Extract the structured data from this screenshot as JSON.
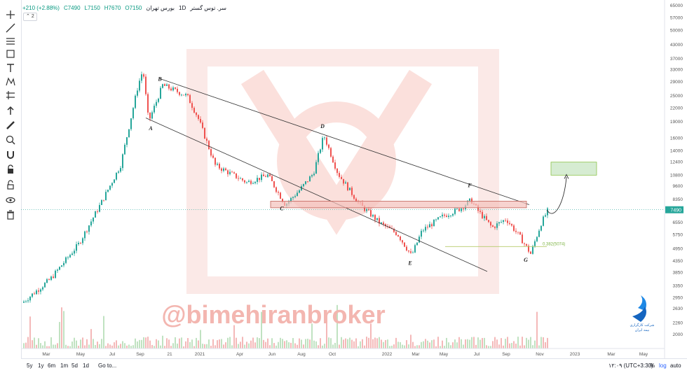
{
  "header": {
    "symbol": "سر. توس گستر",
    "interval": "1D",
    "exchange": "بورس تهران",
    "open": "O7150",
    "high": "H7670",
    "low": "L7150",
    "close": "C7490",
    "change": "+210 (+2.88%)",
    "collapse_label": "2"
  },
  "bottom_bar": {
    "ranges": [
      "5y",
      "1y",
      "6m",
      "1m",
      "5d",
      "1d"
    ],
    "goto": "Go to...",
    "time": "۱۲:۰۹ (UTC+3:30)",
    "percent": "%",
    "log": "log",
    "auto": "auto"
  },
  "watermark": "@bimehiranbroker",
  "logo_text": [
    "شرکت کارگزاری",
    "بیمه ایران"
  ],
  "colors": {
    "up": "#26a69a",
    "down": "#ef5350",
    "watermark": "#e57373",
    "fib": "#b5cc6a",
    "target_fill": "#d6ecd2",
    "price_badge": "#26a69a",
    "logo": "#1e88e5"
  },
  "tools": [
    "crosshair-icon",
    "trend-line-icon",
    "fib-icon",
    "brush-icon",
    "text-icon",
    "pattern-icon",
    "forecast-icon",
    "arrow-icon",
    "ruler-icon",
    "zoom-icon",
    "magnet-icon",
    "lock-draw-icon",
    "lock-icon",
    "eye-icon",
    "trash-icon"
  ],
  "chart_data": {
    "type": "candlestick",
    "price_scale": "log",
    "y_ticks": [
      65000,
      57000,
      50000,
      43000,
      37000,
      33000,
      29000,
      25000,
      22000,
      19000,
      16000,
      14000,
      12400,
      10800,
      9600,
      8350,
      7490,
      6550,
      5750,
      4950,
      4350,
      3850,
      3350,
      2950,
      2630,
      2260,
      2000
    ],
    "x_ticks": [
      "Mar",
      "May",
      "Jul",
      "Sep",
      "21",
      "2021",
      "Apr",
      "Jun",
      "Aug",
      "Oct",
      "2022",
      "Mar",
      "May",
      "Jul",
      "Sep",
      "Nov",
      "2023",
      "Mar",
      "May"
    ],
    "last_price": "7490",
    "wave_labels": [
      {
        "label": "A",
        "value": 19000
      },
      {
        "label": "B",
        "value": 28000
      },
      {
        "label": "C",
        "value": 7800
      },
      {
        "label": "D",
        "value": 17000
      },
      {
        "label": "E",
        "value": 4500
      },
      {
        "label": "F",
        "value": 9100
      },
      {
        "label": "G",
        "value": 4650
      }
    ],
    "fib_label": "0.382(5074)",
    "fib_value": 5074,
    "resistance_zone": [
      7650,
      8200
    ],
    "target_zone": [
      10800,
      12400
    ]
  }
}
